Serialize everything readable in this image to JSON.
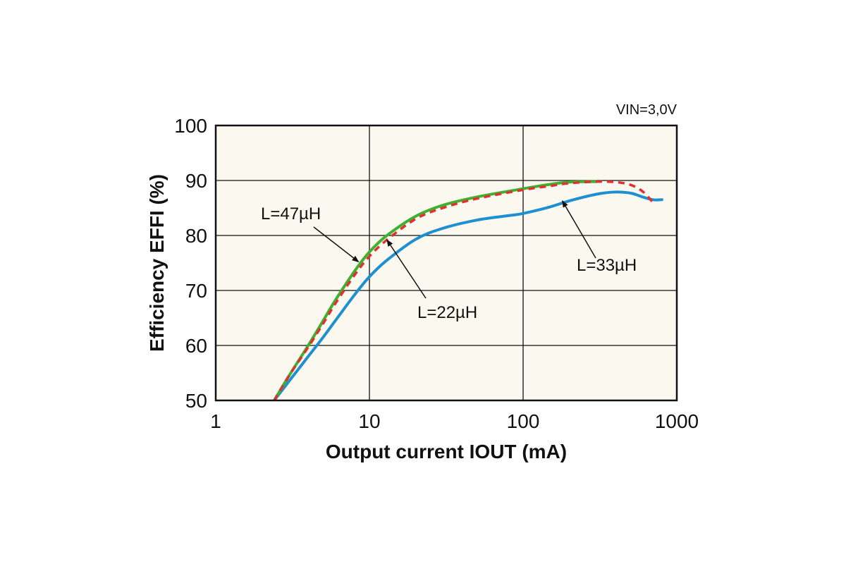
{
  "chart_data": {
    "type": "line",
    "condition": "VIN=3,0V",
    "xlabel": "Output current IOUT (mA)",
    "ylabel": "Efficiency EFFI (%)",
    "x_scale": "log",
    "xlim": [
      1,
      1000
    ],
    "ylim": [
      50,
      100
    ],
    "x_ticks": [
      1,
      10,
      100,
      1000
    ],
    "x_tick_labels": [
      "1",
      "10",
      "100",
      "1000"
    ],
    "y_ticks": [
      50,
      60,
      70,
      80,
      90,
      100
    ],
    "y_tick_labels": [
      "50",
      "60",
      "70",
      "80",
      "90",
      "100"
    ],
    "grid": true,
    "series": [
      {
        "name": "L=47µH",
        "color": "#3fb030",
        "style": "solid",
        "x": [
          2.4,
          3,
          4,
          5,
          6,
          8,
          10,
          13,
          20,
          30,
          50,
          100,
          150,
          200,
          300
        ],
        "y": [
          50,
          54.5,
          60,
          64.5,
          68.2,
          73.5,
          77,
          80,
          83.5,
          85.5,
          87,
          88.5,
          89.3,
          89.7,
          89.8
        ]
      },
      {
        "name": "L=22µH",
        "color": "#e03030",
        "style": "dashed",
        "x": [
          2.4,
          3,
          4,
          5,
          6,
          8,
          10,
          13,
          20,
          30,
          50,
          100,
          150,
          200,
          300,
          400,
          500,
          600,
          700
        ],
        "y": [
          50,
          54.5,
          59.7,
          64,
          67.6,
          72.8,
          76.2,
          79.2,
          83,
          85,
          86.7,
          88.3,
          89,
          89.5,
          89.8,
          89.7,
          89.2,
          88,
          86
        ]
      },
      {
        "name": "L=33µH",
        "color": "#1e8fcf",
        "style": "solid",
        "x": [
          2.4,
          3,
          4,
          5,
          6,
          8,
          10,
          13,
          20,
          30,
          50,
          80,
          100,
          150,
          200,
          300,
          400,
          500,
          600,
          700,
          800
        ],
        "y": [
          50,
          53.5,
          58,
          61.5,
          64.5,
          69.2,
          72.5,
          75.5,
          79.3,
          81.3,
          82.8,
          83.6,
          84,
          85.2,
          86.3,
          87.5,
          87.9,
          87.7,
          87,
          86.5,
          86.5
        ]
      }
    ],
    "annotations": [
      {
        "text": "L=47µH",
        "series": 0,
        "arrow_to": [
          8.5,
          75.2
        ]
      },
      {
        "text": "L=22µH",
        "series": 1,
        "arrow_to": [
          13,
          79.2
        ]
      },
      {
        "text": "L=33µH",
        "series": 2,
        "arrow_to": [
          180,
          86.3
        ]
      }
    ]
  }
}
